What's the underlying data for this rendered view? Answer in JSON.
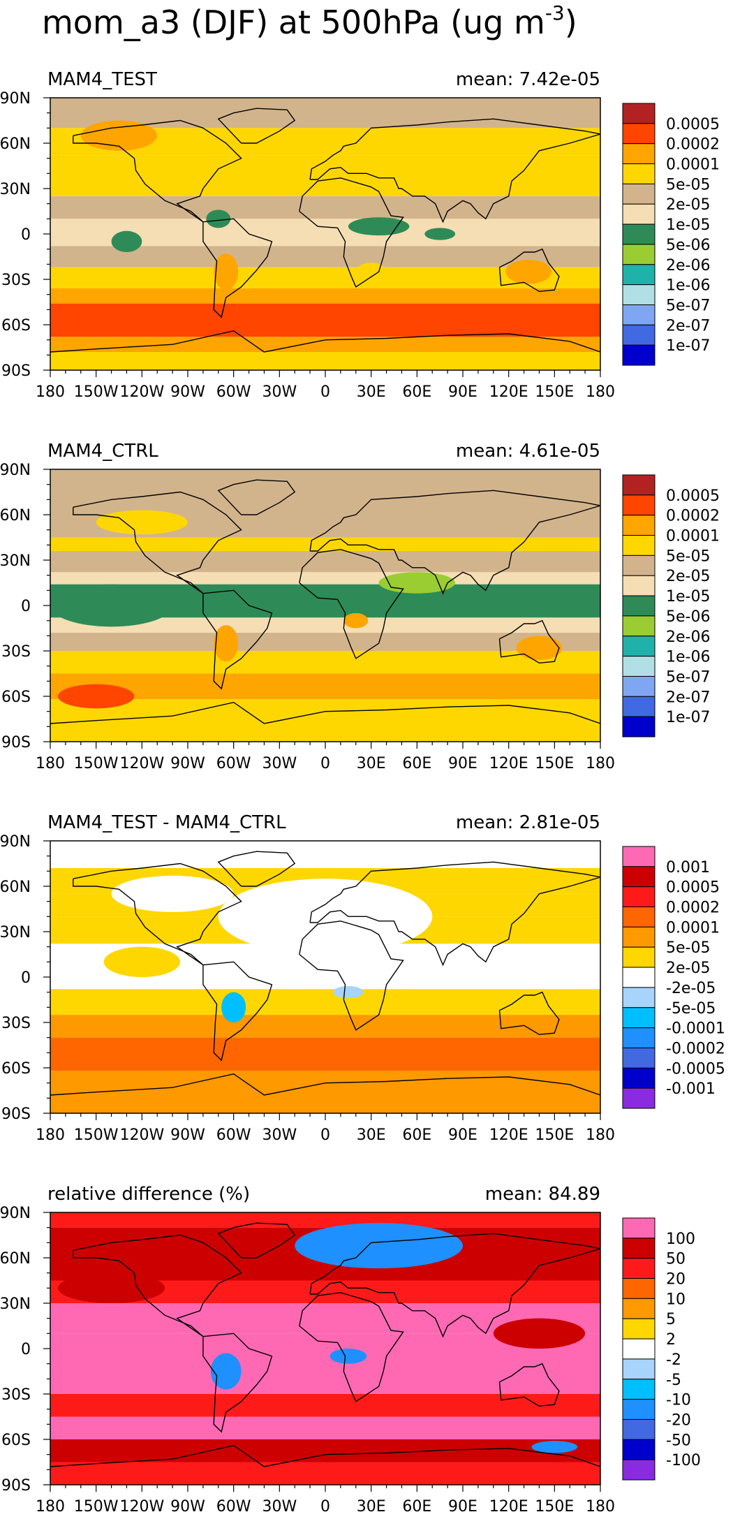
{
  "title_main": "mom_a3 (DJF) at 500hPa (ug m",
  "title_exp": "-3",
  "title_close": ")",
  "chart_data": [
    {
      "type": "heatmap",
      "panel_label": "MAM4_TEST",
      "mean_label": "mean: 7.42e-05",
      "x_ticks": [
        "180",
        "150W",
        "120W",
        "90W",
        "60W",
        "30W",
        "0",
        "30E",
        "60E",
        "90E",
        "120E",
        "150E",
        "180"
      ],
      "y_ticks": [
        "90N",
        "60N",
        "30N",
        "0",
        "30S",
        "60S",
        "90S"
      ],
      "xlim": [
        -180,
        180
      ],
      "ylim": [
        -90,
        90
      ],
      "colorbar": {
        "labels": [
          "0.0005",
          "0.0002",
          "0.0001",
          "5e-05",
          "2e-05",
          "1e-05",
          "5e-06",
          "2e-06",
          "1e-06",
          "5e-07",
          "2e-07",
          "1e-07"
        ],
        "colors": [
          "#b22222",
          "#ff4500",
          "#ffa500",
          "#ffd700",
          "#d2b48c",
          "#f5deb3",
          "#2e8b57",
          "#9acd32",
          "#20b2aa",
          "#b0e0e6",
          "#7fa6f2",
          "#4169e1",
          "#0000cd"
        ]
      },
      "zonal_bands": [
        [
          70,
          90,
          "#d2b48c"
        ],
        [
          52,
          70,
          "#ffd700"
        ],
        [
          36,
          52,
          "#ffd700"
        ],
        [
          25,
          36,
          "#ffd700"
        ],
        [
          10,
          25,
          "#d2b48c"
        ],
        [
          -8,
          10,
          "#f5deb3"
        ],
        [
          -22,
          -8,
          "#d2b48c"
        ],
        [
          -36,
          -22,
          "#ffd700"
        ],
        [
          -46,
          -36,
          "#ffa500"
        ],
        [
          -68,
          -46,
          "#ff4500"
        ],
        [
          -78,
          -68,
          "#ffa500"
        ],
        [
          -90,
          -78,
          "#ffd700"
        ]
      ],
      "patches": [
        [
          -135,
          65,
          25,
          10,
          "#ffa500"
        ],
        [
          -70,
          10,
          8,
          6,
          "#2e8b57"
        ],
        [
          -130,
          -5,
          10,
          7,
          "#2e8b57"
        ],
        [
          35,
          5,
          20,
          6,
          "#2e8b57"
        ],
        [
          75,
          0,
          10,
          4,
          "#2e8b57"
        ],
        [
          -65,
          -25,
          8,
          12,
          "#ffa500"
        ],
        [
          133,
          -25,
          15,
          8,
          "#ffa500"
        ],
        [
          30,
          -25,
          10,
          6,
          "#ffd700"
        ]
      ]
    },
    {
      "type": "heatmap",
      "panel_label": "MAM4_CTRL",
      "mean_label": "mean: 4.61e-05",
      "x_ticks": [
        "180",
        "150W",
        "120W",
        "90W",
        "60W",
        "30W",
        "0",
        "30E",
        "60E",
        "90E",
        "120E",
        "150E",
        "180"
      ],
      "y_ticks": [
        "90N",
        "60N",
        "30N",
        "0",
        "30S",
        "60S",
        "90S"
      ],
      "xlim": [
        -180,
        180
      ],
      "ylim": [
        -90,
        90
      ],
      "colorbar": {
        "labels": [
          "0.0005",
          "0.0002",
          "0.0001",
          "5e-05",
          "2e-05",
          "1e-05",
          "5e-06",
          "2e-06",
          "1e-06",
          "5e-07",
          "2e-07",
          "1e-07"
        ],
        "colors": [
          "#b22222",
          "#ff4500",
          "#ffa500",
          "#ffd700",
          "#d2b48c",
          "#f5deb3",
          "#2e8b57",
          "#9acd32",
          "#20b2aa",
          "#b0e0e6",
          "#7fa6f2",
          "#4169e1",
          "#0000cd"
        ]
      },
      "zonal_bands": [
        [
          72,
          90,
          "#d2b48c"
        ],
        [
          45,
          72,
          "#d2b48c"
        ],
        [
          36,
          45,
          "#ffd700"
        ],
        [
          22,
          36,
          "#d2b48c"
        ],
        [
          14,
          22,
          "#f5deb3"
        ],
        [
          -8,
          14,
          "#2e8b57"
        ],
        [
          -18,
          -8,
          "#f5deb3"
        ],
        [
          -30,
          -18,
          "#d2b48c"
        ],
        [
          -45,
          -30,
          "#ffd700"
        ],
        [
          -62,
          -45,
          "#ffa500"
        ],
        [
          -90,
          -62,
          "#ffd700"
        ]
      ],
      "patches": [
        [
          -140,
          0,
          25,
          8,
          "#9acd32"
        ],
        [
          -140,
          0,
          40,
          14,
          "#2e8b57"
        ],
        [
          60,
          15,
          25,
          7,
          "#9acd32"
        ],
        [
          -65,
          -25,
          8,
          12,
          "#ffa500"
        ],
        [
          20,
          -10,
          8,
          5,
          "#ffa500"
        ],
        [
          -150,
          -60,
          25,
          8,
          "#ff4500"
        ],
        [
          140,
          -28,
          15,
          8,
          "#ffa500"
        ],
        [
          -120,
          55,
          30,
          8,
          "#ffd700"
        ]
      ]
    },
    {
      "type": "heatmap",
      "panel_label": "MAM4_TEST - MAM4_CTRL",
      "mean_label": "mean: 2.81e-05",
      "x_ticks": [
        "180",
        "150W",
        "120W",
        "90W",
        "60W",
        "30W",
        "0",
        "30E",
        "60E",
        "90E",
        "120E",
        "150E",
        "180"
      ],
      "y_ticks": [
        "90N",
        "60N",
        "30N",
        "0",
        "30S",
        "60S",
        "90S"
      ],
      "xlim": [
        -180,
        180
      ],
      "ylim": [
        -90,
        90
      ],
      "colorbar": {
        "labels": [
          "0.001",
          "0.0005",
          "0.0002",
          "0.0001",
          "5e-05",
          "2e-05",
          "-2e-05",
          "-5e-05",
          "-0.0001",
          "-0.0002",
          "-0.0005",
          "-0.001"
        ],
        "colors": [
          "#ff69b4",
          "#cd0000",
          "#ff1a1a",
          "#ff6600",
          "#ff9900",
          "#ffd700",
          "#ffffff",
          "#a6d4fa",
          "#00bfff",
          "#1e90ff",
          "#4169e1",
          "#0000cd",
          "#8a2be2"
        ]
      },
      "zonal_bands": [
        [
          72,
          90,
          "#ffffff"
        ],
        [
          55,
          72,
          "#ffd700"
        ],
        [
          40,
          55,
          "#ffd700"
        ],
        [
          22,
          40,
          "#ffd700"
        ],
        [
          -8,
          22,
          "#ffffff"
        ],
        [
          -25,
          -8,
          "#ffd700"
        ],
        [
          -40,
          -25,
          "#ff9900"
        ],
        [
          -62,
          -40,
          "#ff6600"
        ],
        [
          -75,
          -62,
          "#ff9900"
        ],
        [
          -90,
          -75,
          "#ff9900"
        ]
      ],
      "patches": [
        [
          0,
          40,
          70,
          25,
          "#ffffff"
        ],
        [
          -100,
          55,
          40,
          12,
          "#ffffff"
        ],
        [
          -60,
          -20,
          8,
          10,
          "#00bfff"
        ],
        [
          15,
          -10,
          10,
          4,
          "#a6d4fa"
        ],
        [
          -120,
          10,
          25,
          10,
          "#ffd700"
        ]
      ]
    },
    {
      "type": "heatmap",
      "panel_label": "relative difference (%)",
      "mean_label": "mean: 84.89",
      "x_ticks": [
        "180",
        "150W",
        "120W",
        "90W",
        "60W",
        "30W",
        "0",
        "30E",
        "60E",
        "90E",
        "120E",
        "150E",
        "180"
      ],
      "y_ticks": [
        "90N",
        "60N",
        "30N",
        "0",
        "30S",
        "60S",
        "90S"
      ],
      "xlim": [
        -180,
        180
      ],
      "ylim": [
        -90,
        90
      ],
      "colorbar": {
        "labels": [
          "100",
          "50",
          "20",
          "10",
          "5",
          "2",
          "-2",
          "-5",
          "-10",
          "-20",
          "-50",
          "-100"
        ],
        "colors": [
          "#ff69b4",
          "#cd0000",
          "#ff1a1a",
          "#ff6600",
          "#ff9900",
          "#ffd700",
          "#ffffff",
          "#a6d4fa",
          "#00bfff",
          "#1e90ff",
          "#4169e1",
          "#0000cd",
          "#8a2be2"
        ]
      },
      "zonal_bands": [
        [
          80,
          90,
          "#ff1a1a"
        ],
        [
          45,
          80,
          "#cd0000"
        ],
        [
          30,
          45,
          "#ff1a1a"
        ],
        [
          10,
          30,
          "#ff69b4"
        ],
        [
          -30,
          10,
          "#ff69b4"
        ],
        [
          -45,
          -30,
          "#ff1a1a"
        ],
        [
          -60,
          -45,
          "#ff69b4"
        ],
        [
          -75,
          -60,
          "#cd0000"
        ],
        [
          -90,
          -75,
          "#ff1a1a"
        ]
      ],
      "patches": [
        [
          35,
          68,
          45,
          12,
          "#4169e1"
        ],
        [
          35,
          68,
          55,
          15,
          "#1e90ff"
        ],
        [
          -65,
          -15,
          10,
          12,
          "#1e90ff"
        ],
        [
          15,
          -5,
          12,
          5,
          "#1e90ff"
        ],
        [
          -140,
          40,
          35,
          10,
          "#cd0000"
        ],
        [
          140,
          10,
          30,
          10,
          "#cd0000"
        ],
        [
          150,
          -65,
          15,
          4,
          "#1e90ff"
        ]
      ]
    }
  ]
}
